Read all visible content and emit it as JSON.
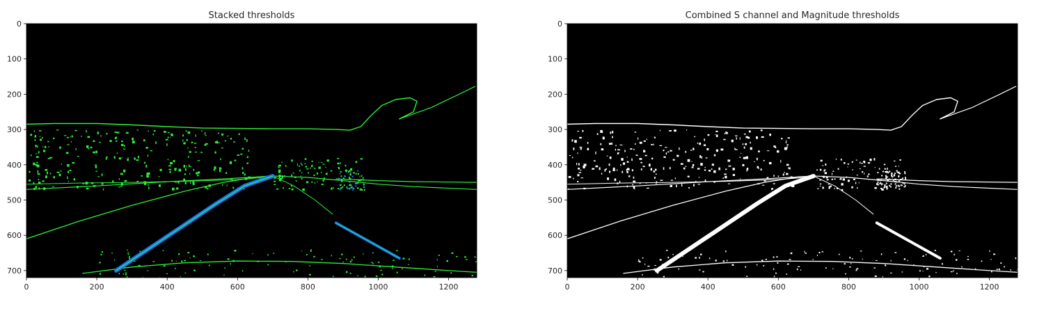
{
  "chart_data": [
    {
      "type": "image",
      "title": "Stacked thresholds",
      "xlim": [
        0,
        1280
      ],
      "ylim": [
        720,
        0
      ],
      "xticks": [
        0,
        200,
        400,
        600,
        800,
        1000,
        1200
      ],
      "yticks": [
        0,
        100,
        200,
        300,
        400,
        500,
        600,
        700
      ],
      "background": "#000000",
      "colors": {
        "edge": "#2ef03a",
        "lane": "#1a6cff"
      }
    },
    {
      "type": "image",
      "title": "Combined S channel and Magnitude thresholds",
      "xlim": [
        0,
        1280
      ],
      "ylim": [
        720,
        0
      ],
      "xticks": [
        0,
        200,
        400,
        600,
        800,
        1000,
        1200
      ],
      "yticks": [
        0,
        100,
        200,
        300,
        400,
        500,
        600,
        700
      ],
      "background": "#000000",
      "colors": {
        "edge": "#ffffff",
        "lane": "#ffffff"
      }
    }
  ]
}
